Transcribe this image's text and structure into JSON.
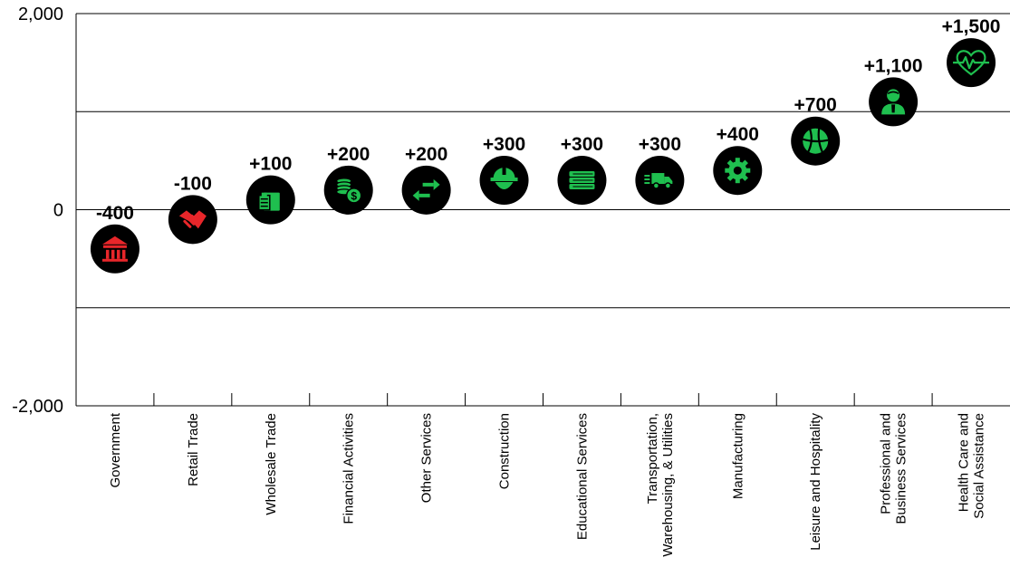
{
  "chart_data": {
    "type": "scatter",
    "title": "",
    "xlabel": "",
    "ylabel": "",
    "ylim": [
      -2000,
      2000
    ],
    "yticks": [
      2000,
      0,
      -2000
    ],
    "ytick_labels": [
      "2,000",
      "0",
      "-2,000"
    ],
    "grid": true,
    "negative_color": "#e8262a",
    "positive_color": "#1fbf4f",
    "marker_color": "#000000",
    "points": [
      {
        "category": [
          "Government"
        ],
        "value": -400,
        "label": "-400",
        "icon": "bank-icon"
      },
      {
        "category": [
          "Retail Trade"
        ],
        "value": -100,
        "label": "-100",
        "icon": "handshake-icon"
      },
      {
        "category": [
          "Wholesale Trade"
        ],
        "value": 100,
        "label": "+100",
        "icon": "clipboard-box-icon"
      },
      {
        "category": [
          "Financial Activities"
        ],
        "value": 200,
        "label": "+200",
        "icon": "coins-icon"
      },
      {
        "category": [
          "Other Services"
        ],
        "value": 200,
        "label": "+200",
        "icon": "exchange-arrows-icon"
      },
      {
        "category": [
          "Construction"
        ],
        "value": 300,
        "label": "+300",
        "icon": "hard-hat-icon"
      },
      {
        "category": [
          "Educational Services"
        ],
        "value": 300,
        "label": "+300",
        "icon": "books-icon"
      },
      {
        "category": [
          "Transportation,",
          "Warehousing, & Utilities"
        ],
        "value": 300,
        "label": "+300",
        "icon": "truck-icon"
      },
      {
        "category": [
          "Manufacturing"
        ],
        "value": 400,
        "label": "+400",
        "icon": "gear-icon"
      },
      {
        "category": [
          "Leisure and Hospitality"
        ],
        "value": 700,
        "label": "+700",
        "icon": "beach-ball-icon"
      },
      {
        "category": [
          "Professional and",
          "Business Services"
        ],
        "value": 1100,
        "label": "+1,100",
        "icon": "businessman-icon"
      },
      {
        "category": [
          "Health Care and",
          "Social Assistance"
        ],
        "value": 1500,
        "label": "+1,500",
        "icon": "heart-monitor-icon"
      }
    ]
  }
}
